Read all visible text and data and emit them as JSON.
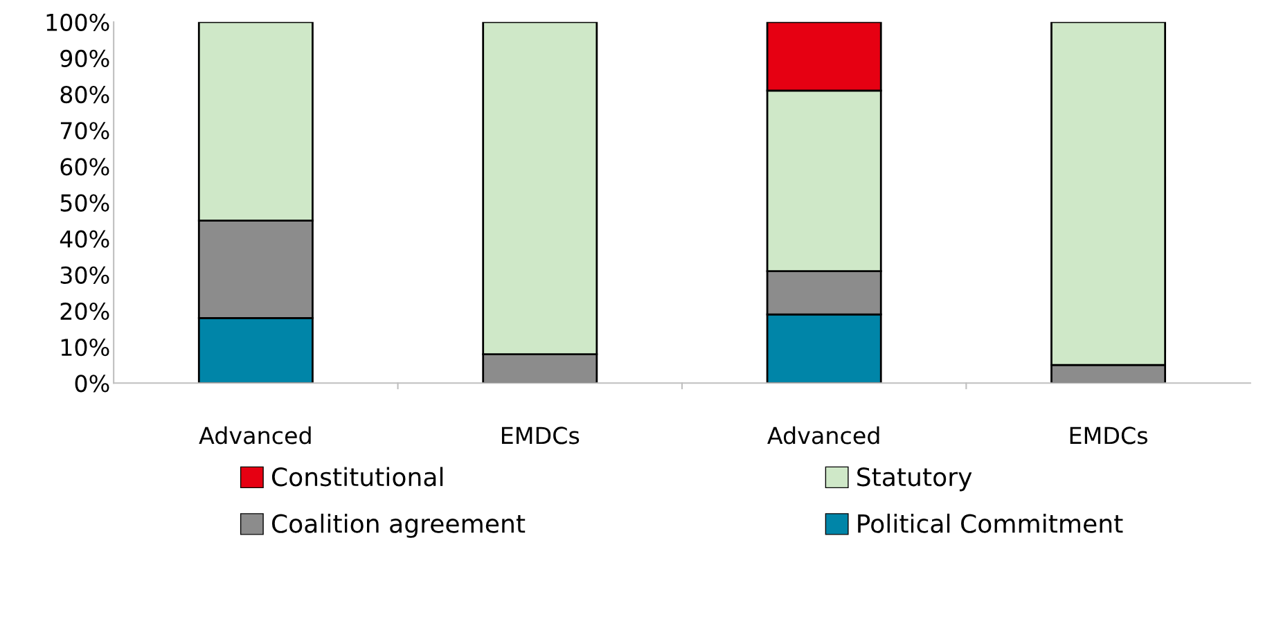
{
  "chart_data": {
    "type": "bar",
    "stacked": true,
    "categories": [
      "Advanced",
      "EMDCs",
      "Advanced",
      "EMDCs"
    ],
    "series": [
      {
        "name": "Political Commitment",
        "color": "#0085a8",
        "values": [
          18,
          0,
          19,
          0
        ]
      },
      {
        "name": "Coalition agreement",
        "color": "#8c8c8c",
        "values": [
          27,
          8,
          12,
          5
        ]
      },
      {
        "name": "Statutory",
        "color": "#cfe8c8",
        "values": [
          55,
          92,
          50,
          95
        ]
      },
      {
        "name": "Constitutional",
        "color": "#e60012",
        "values": [
          0,
          0,
          19,
          0
        ]
      }
    ],
    "ylim": [
      0,
      100
    ],
    "yticks": [
      {
        "value": 0,
        "label": "0%"
      },
      {
        "value": 10,
        "label": "10%"
      },
      {
        "value": 20,
        "label": "20%"
      },
      {
        "value": 30,
        "label": "30%"
      },
      {
        "value": 40,
        "label": "40%"
      },
      {
        "value": 50,
        "label": "50%"
      },
      {
        "value": 60,
        "label": "60%"
      },
      {
        "value": 70,
        "label": "70%"
      },
      {
        "value": 80,
        "label": "80%"
      },
      {
        "value": 90,
        "label": "90%"
      },
      {
        "value": 100,
        "label": "100%"
      }
    ],
    "grid": false,
    "legend": "bottom"
  }
}
